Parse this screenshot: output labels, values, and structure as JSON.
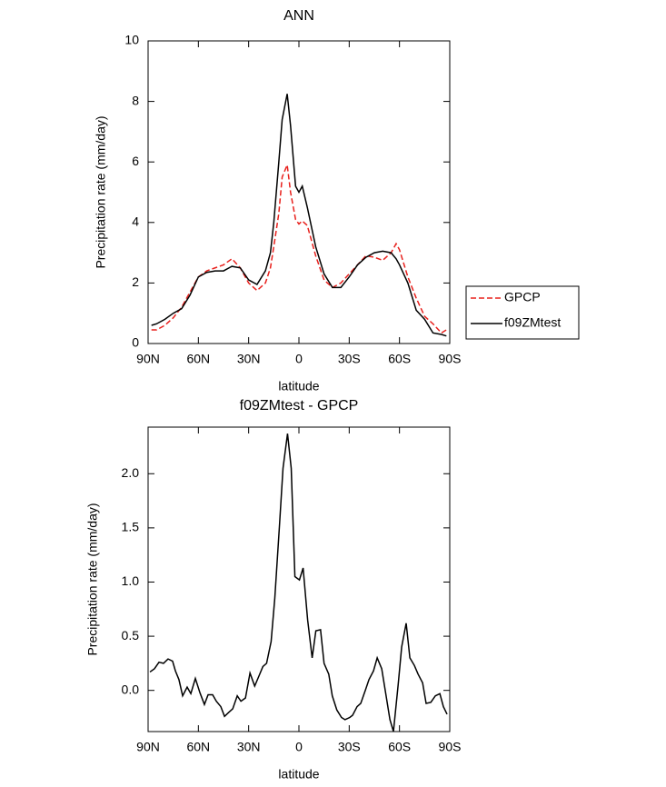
{
  "chart_data": [
    {
      "type": "line",
      "title": "ANN",
      "ylabel": "Precipitation rate (mm/day)",
      "xlabel": "latitude",
      "xlim": [
        90,
        -90
      ],
      "xticks": [
        {
          "value": 90,
          "label": "90N"
        },
        {
          "value": 60,
          "label": "60N"
        },
        {
          "value": 30,
          "label": "30N"
        },
        0,
        {
          "value": -30,
          "label": "30S"
        },
        {
          "value": -60,
          "label": "60S"
        },
        {
          "value": -90,
          "label": "90S"
        }
      ],
      "ylim": [
        0,
        10
      ],
      "yticks": [
        0,
        2,
        4,
        6,
        8,
        10
      ],
      "legend": "right",
      "x": [
        88,
        85,
        80,
        75,
        70,
        65,
        60,
        55,
        50,
        45,
        40,
        35,
        30,
        25,
        20,
        17,
        15,
        12,
        10,
        7,
        5,
        2,
        0,
        -2,
        -5,
        -10,
        -15,
        -20,
        -25,
        -30,
        -35,
        -40,
        -45,
        -50,
        -55,
        -58,
        -60,
        -65,
        -70,
        -75,
        -80,
        -85,
        -88
      ],
      "series": [
        {
          "name": "GPCP",
          "color": "#e8201c",
          "dashed": true,
          "values": [
            0.45,
            0.45,
            0.6,
            0.85,
            1.2,
            1.7,
            2.2,
            2.4,
            2.5,
            2.6,
            2.8,
            2.5,
            2.0,
            1.75,
            2.0,
            2.5,
            3.2,
            4.3,
            5.5,
            5.9,
            5.0,
            4.1,
            3.95,
            4.05,
            3.9,
            2.9,
            2.1,
            1.85,
            2.0,
            2.3,
            2.6,
            2.9,
            2.85,
            2.75,
            3.0,
            3.3,
            3.1,
            2.2,
            1.5,
            0.9,
            0.65,
            0.35,
            0.45
          ]
        },
        {
          "name": "f09ZMtest",
          "color": "#000000",
          "dashed": false,
          "values": [
            0.6,
            0.65,
            0.8,
            1.0,
            1.15,
            1.6,
            2.2,
            2.35,
            2.4,
            2.4,
            2.55,
            2.5,
            2.1,
            1.95,
            2.4,
            3.0,
            4.0,
            6.0,
            7.4,
            8.25,
            7.2,
            5.2,
            5.0,
            5.2,
            4.5,
            3.2,
            2.3,
            1.85,
            1.85,
            2.2,
            2.6,
            2.85,
            3.0,
            3.05,
            3.0,
            2.8,
            2.6,
            2.0,
            1.1,
            0.8,
            0.35,
            0.3,
            0.25
          ]
        }
      ]
    },
    {
      "type": "line",
      "title": "f09ZMtest - GPCP",
      "ylabel": "Precipitation rate (mm/day)",
      "xlabel": "latitude",
      "xlim": [
        90,
        -90
      ],
      "xticks": [
        {
          "value": 90,
          "label": "90N"
        },
        {
          "value": 60,
          "label": "60N"
        },
        {
          "value": 30,
          "label": "30N"
        },
        0,
        {
          "value": -30,
          "label": "30S"
        },
        {
          "value": -60,
          "label": "60S"
        },
        {
          "value": -90,
          "label": "90S"
        }
      ],
      "ylim": [
        -0.38,
        2.43
      ],
      "yticks": [
        {
          "value": 0,
          "label": "0.0"
        },
        {
          "value": 0.5,
          "label": "0.5"
        },
        {
          "value": 1,
          "label": "1.0"
        },
        {
          "value": 1.5,
          "label": "1.5"
        },
        {
          "value": 2,
          "label": "2.0"
        }
      ],
      "color": "#000000",
      "x": [
        88.9,
        86.2,
        83.5,
        80.8,
        78.1,
        75.4,
        73.7,
        71.6,
        69.4,
        66.7,
        64.5,
        61.8,
        59.1,
        56.4,
        54.2,
        51.5,
        49.3,
        46.6,
        44.4,
        41.7,
        39.5,
        36.8,
        34.6,
        31.9,
        29.2,
        26.4,
        24.2,
        21.5,
        19.3,
        16.6,
        14.4,
        11.7,
        9.5,
        6.8,
        4.6,
        2.4,
        -0.3,
        -2.5,
        -5.2,
        -7.9,
        -10.1,
        -12.9,
        -15.0,
        -17.8,
        -19.9,
        -22.6,
        -25.4,
        -27.5,
        -30.3,
        -32.0,
        -34.7,
        -36.9,
        -39.6,
        -41.8,
        -44.5,
        -46.7,
        -49.4,
        -51.5,
        -54.3,
        -56.4,
        -59.2,
        -61.3,
        -64.0,
        -66.2,
        -68.9,
        -71.1,
        -73.8,
        -75.9,
        -78.7,
        -81.4,
        -84.1,
        -86.2,
        -88.4
      ],
      "values": [
        0.17,
        0.2,
        0.26,
        0.25,
        0.29,
        0.27,
        0.18,
        0.1,
        -0.05,
        0.03,
        -0.03,
        0.11,
        -0.02,
        -0.13,
        -0.04,
        -0.04,
        -0.1,
        -0.15,
        -0.24,
        -0.2,
        -0.17,
        -0.05,
        -0.1,
        -0.07,
        0.16,
        0.04,
        0.12,
        0.22,
        0.25,
        0.45,
        0.85,
        1.5,
        2.05,
        2.37,
        2.05,
        1.05,
        1.02,
        1.13,
        0.65,
        0.3,
        0.55,
        0.56,
        0.25,
        0.15,
        -0.05,
        -0.18,
        -0.25,
        -0.27,
        -0.25,
        -0.23,
        -0.15,
        -0.12,
        0.0,
        0.1,
        0.18,
        0.3,
        0.2,
        0.0,
        -0.27,
        -0.38,
        0.05,
        0.4,
        0.62,
        0.3,
        0.23,
        0.15,
        0.07,
        -0.12,
        -0.11,
        -0.05,
        -0.03,
        -0.15,
        -0.22
      ]
    }
  ]
}
